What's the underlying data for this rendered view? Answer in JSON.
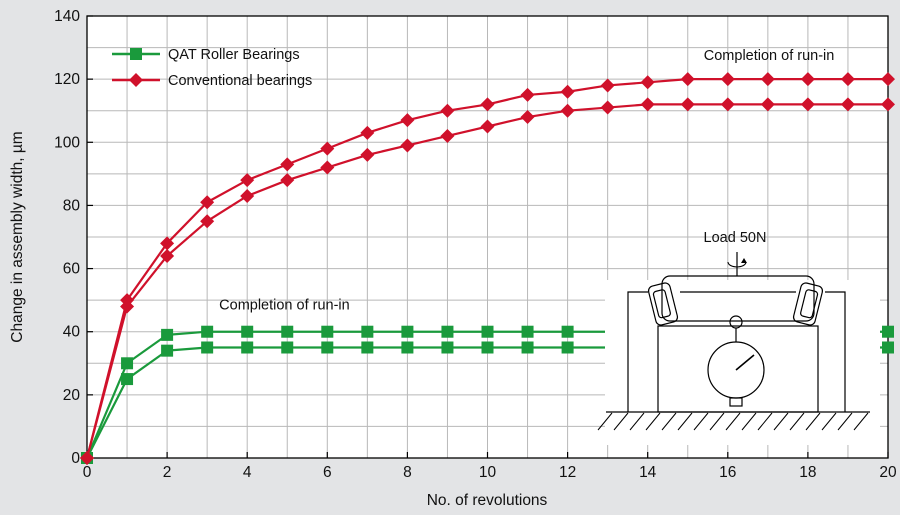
{
  "chart_data": {
    "type": "line",
    "title": "",
    "xlabel": "No. of revolutions",
    "ylabel": "Change in assembly width, µm",
    "xlim": [
      0,
      20
    ],
    "ylim": [
      0,
      140
    ],
    "x_ticks": [
      "0",
      "2",
      "4",
      "6",
      "8",
      "10",
      "12",
      "14",
      "16",
      "18",
      "20"
    ],
    "y_ticks": [
      "0",
      "20",
      "40",
      "60",
      "80",
      "100",
      "120",
      "140"
    ],
    "grid": true,
    "legend_position": "top-left",
    "series": [
      {
        "name": "QAT Roller Bearings",
        "color": "#1a9a3c",
        "marker": "square",
        "curves": [
          {
            "x": [
              0,
              1,
              2,
              3,
              4,
              5,
              6,
              7,
              8,
              9,
              10,
              11,
              12,
              13,
              14,
              15,
              16,
              17,
              18,
              19,
              20
            ],
            "y": [
              0,
              30,
              39,
              40,
              40,
              40,
              40,
              40,
              40,
              40,
              40,
              40,
              40,
              40,
              40,
              40,
              40,
              40,
              40,
              40,
              40
            ]
          },
          {
            "x": [
              0,
              1,
              2,
              3,
              4,
              5,
              6,
              7,
              8,
              9,
              10,
              11,
              12,
              13,
              14,
              15,
              16,
              17,
              18,
              19,
              20
            ],
            "y": [
              0,
              25,
              34,
              35,
              35,
              35,
              35,
              35,
              35,
              35,
              35,
              35,
              35,
              35,
              35,
              35,
              35,
              35,
              35,
              35,
              35
            ]
          }
        ]
      },
      {
        "name": "Conventional bearings",
        "color": "#d0112b",
        "marker": "diamond",
        "curves": [
          {
            "x": [
              0,
              1,
              2,
              3,
              4,
              5,
              6,
              7,
              8,
              9,
              10,
              11,
              12,
              13,
              14,
              15,
              16,
              17,
              18,
              19,
              20
            ],
            "y": [
              0,
              50,
              68,
              81,
              88,
              93,
              98,
              103,
              107,
              110,
              112,
              115,
              116,
              118,
              119,
              120,
              120,
              120,
              120,
              120,
              120
            ]
          },
          {
            "x": [
              0,
              1,
              2,
              3,
              4,
              5,
              6,
              7,
              8,
              9,
              10,
              11,
              12,
              13,
              14,
              15,
              16,
              17,
              18,
              19,
              20
            ],
            "y": [
              0,
              48,
              64,
              75,
              83,
              88,
              92,
              96,
              99,
              102,
              105,
              108,
              110,
              111,
              112,
              112,
              112,
              112,
              112,
              112,
              112
            ]
          }
        ]
      }
    ],
    "annotations": [
      {
        "text": "Completion of run-in",
        "x": 3.3,
        "y": 47
      },
      {
        "text": "Completion of run-in",
        "x": 15.4,
        "y": 126
      }
    ],
    "inset": {
      "label": "Load 50N"
    }
  }
}
